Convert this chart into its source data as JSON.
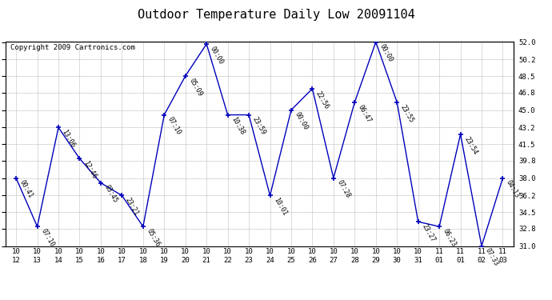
{
  "title": "Outdoor Temperature Daily Low 20091104",
  "copyright": "Copyright 2009 Cartronics.com",
  "background_color": "#ffffff",
  "line_color": "#0000bb",
  "marker_color": "#0000bb",
  "grid_color": "#cccccc",
  "points": [
    {
      "x": 0,
      "date": "10/12",
      "temp": 38.0,
      "label": "00:41"
    },
    {
      "x": 1,
      "date": "10/13",
      "temp": 33.0,
      "label": "07:10"
    },
    {
      "x": 2,
      "date": "10/14",
      "temp": 43.2,
      "label": "13:06"
    },
    {
      "x": 3,
      "date": "10/15",
      "temp": 40.0,
      "label": "12:46"
    },
    {
      "x": 4,
      "date": "10/16",
      "temp": 37.5,
      "label": "03:45"
    },
    {
      "x": 5,
      "date": "10/17",
      "temp": 36.2,
      "label": "23:21"
    },
    {
      "x": 6,
      "date": "10/18",
      "temp": 33.0,
      "label": "05:36"
    },
    {
      "x": 7,
      "date": "10/19",
      "temp": 44.5,
      "label": "07:10"
    },
    {
      "x": 8,
      "date": "10/20",
      "temp": 48.5,
      "label": "05:09"
    },
    {
      "x": 9,
      "date": "10/21",
      "temp": 51.8,
      "label": "00:00"
    },
    {
      "x": 10,
      "date": "10/22",
      "temp": 44.5,
      "label": "10:38"
    },
    {
      "x": 11,
      "date": "10/23",
      "temp": 44.5,
      "label": "23:59"
    },
    {
      "x": 12,
      "date": "10/24",
      "temp": 36.2,
      "label": "10:01"
    },
    {
      "x": 13,
      "date": "10/25",
      "temp": 45.0,
      "label": "00:00"
    },
    {
      "x": 14,
      "date": "10/26",
      "temp": 47.2,
      "label": "22:56"
    },
    {
      "x": 15,
      "date": "10/27",
      "temp": 38.0,
      "label": "07:28"
    },
    {
      "x": 16,
      "date": "10/28",
      "temp": 45.8,
      "label": "06:47"
    },
    {
      "x": 17,
      "date": "10/29",
      "temp": 52.0,
      "label": "00:00"
    },
    {
      "x": 18,
      "date": "10/30",
      "temp": 45.8,
      "label": "23:55"
    },
    {
      "x": 19,
      "date": "10/31",
      "temp": 33.5,
      "label": "23:27"
    },
    {
      "x": 20,
      "date": "11/01",
      "temp": 33.0,
      "label": "06:23"
    },
    {
      "x": 21,
      "date": "11/01",
      "temp": 42.5,
      "label": "23:54"
    },
    {
      "x": 22,
      "date": "11/02",
      "temp": 31.0,
      "label": "07:33"
    },
    {
      "x": 23,
      "date": "11/03",
      "temp": 38.0,
      "label": "04:13"
    }
  ],
  "x_labels": [
    "10/12",
    "10/13",
    "10/14",
    "10/15",
    "10/16",
    "10/17",
    "10/18",
    "10/19",
    "10/20",
    "10/21",
    "10/22",
    "10/23",
    "10/24",
    "10/25",
    "10/26",
    "10/27",
    "10/28",
    "10/29",
    "10/30",
    "10/31",
    "11/01",
    "11/01",
    "11/02",
    "11/03"
  ],
  "ylim": [
    31.0,
    52.0
  ],
  "yticks": [
    31.0,
    32.8,
    34.5,
    36.2,
    38.0,
    39.8,
    41.5,
    43.2,
    45.0,
    46.8,
    48.5,
    50.2,
    52.0
  ],
  "title_fontsize": 11,
  "axis_fontsize": 6.5,
  "copyright_fontsize": 6.5,
  "point_label_fontsize": 5.8
}
